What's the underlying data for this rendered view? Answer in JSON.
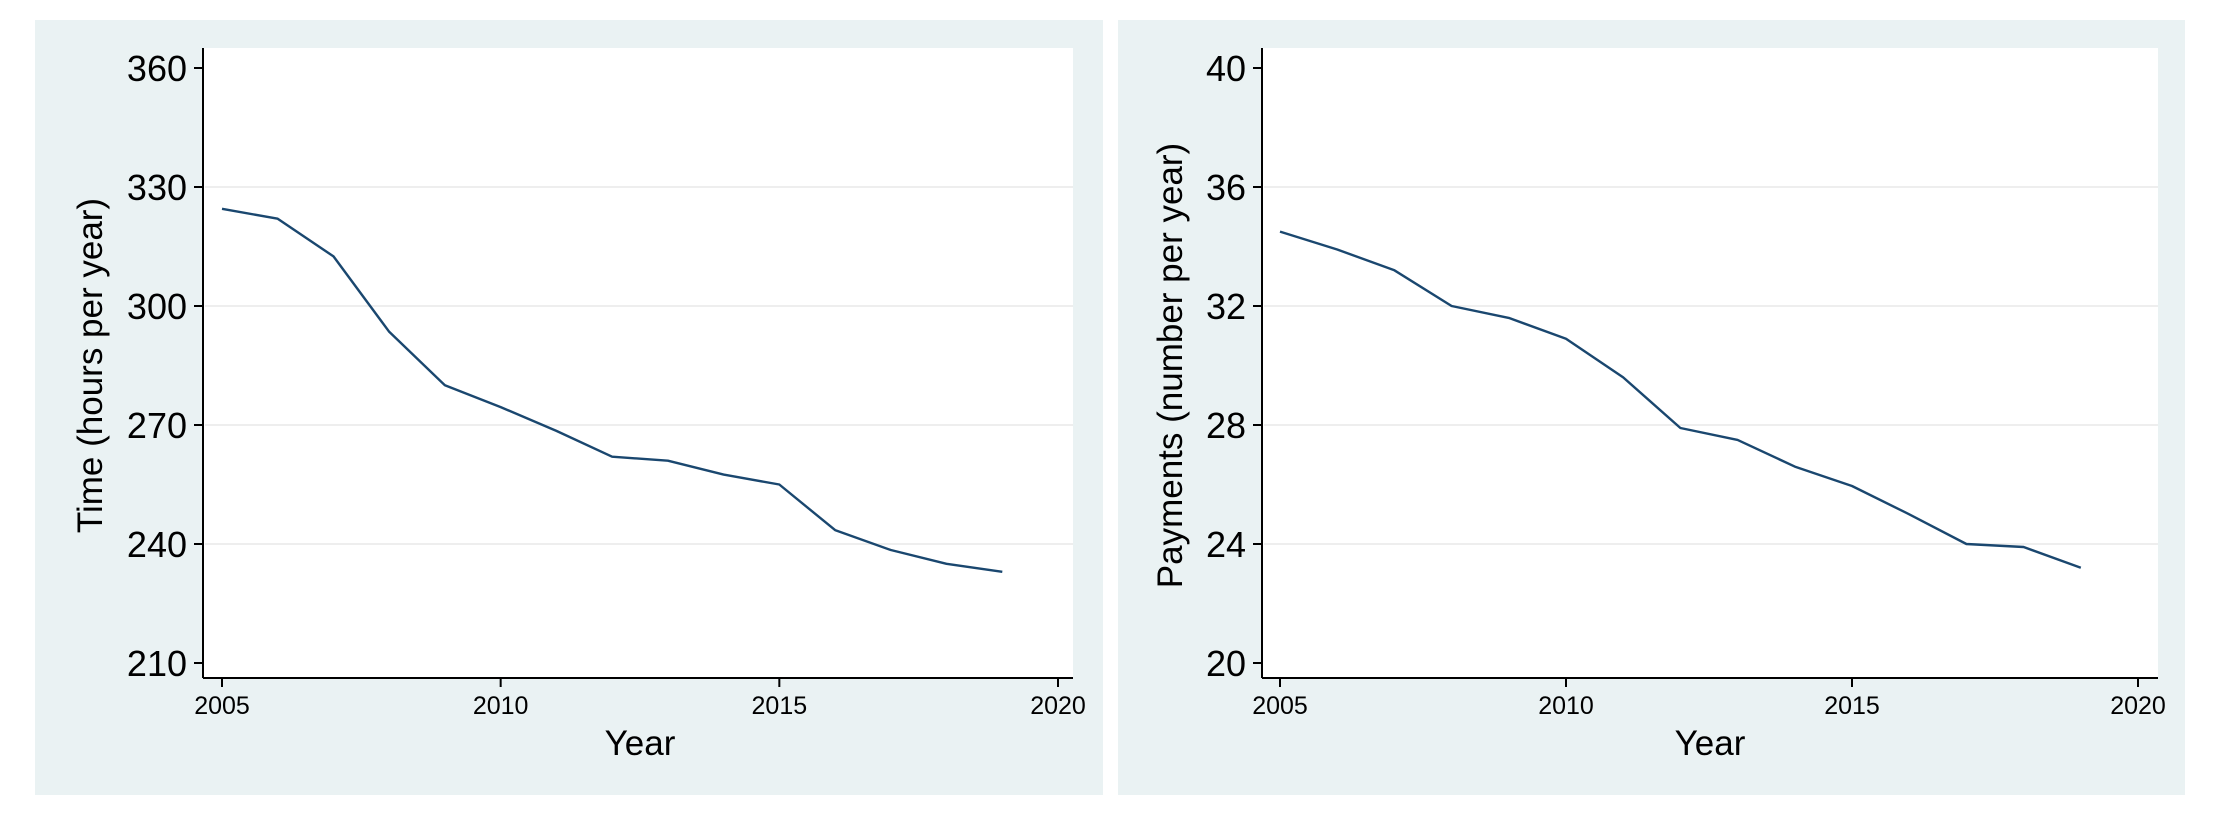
{
  "colors": {
    "panel_background": "#eaf2f3",
    "plot_background": "#ffffff",
    "line": "#1a476f",
    "grid": "#eeeeee"
  },
  "chart_data": [
    {
      "type": "line",
      "xlabel": "Year",
      "ylabel": "Time (hours per year)",
      "xlim": [
        2005,
        2020
      ],
      "ylim": [
        210,
        360
      ],
      "xticks": [
        "2005",
        "2010",
        "2015",
        "2020"
      ],
      "yticks": [
        "210",
        "240",
        "270",
        "300",
        "330",
        "360"
      ],
      "grid": true,
      "x": [
        2005,
        2006,
        2007,
        2008,
        2009,
        2010,
        2011,
        2012,
        2013,
        2014,
        2015,
        2016,
        2017,
        2018,
        2019
      ],
      "series": [
        {
          "values": [
            324.5,
            322,
            312.5,
            293.5,
            280,
            274.5,
            268.5,
            262,
            261,
            257.5,
            255,
            243.5,
            238.5,
            235,
            233
          ]
        }
      ]
    },
    {
      "type": "line",
      "xlabel": "Year",
      "ylabel": "Payments (number per year)",
      "xlim": [
        2005,
        2020
      ],
      "ylim": [
        20,
        40
      ],
      "xticks": [
        "2005",
        "2010",
        "2015",
        "2020"
      ],
      "yticks": [
        "20",
        "24",
        "28",
        "32",
        "36",
        "40"
      ],
      "grid": true,
      "x": [
        2005,
        2006,
        2007,
        2008,
        2009,
        2010,
        2011,
        2012,
        2013,
        2014,
        2015,
        2016,
        2017,
        2018,
        2019
      ],
      "series": [
        {
          "values": [
            34.5,
            33.9,
            33.2,
            32,
            31.6,
            30.9,
            29.6,
            27.9,
            27.5,
            26.6,
            25.95,
            25,
            24,
            23.9,
            23.2
          ]
        }
      ]
    }
  ]
}
